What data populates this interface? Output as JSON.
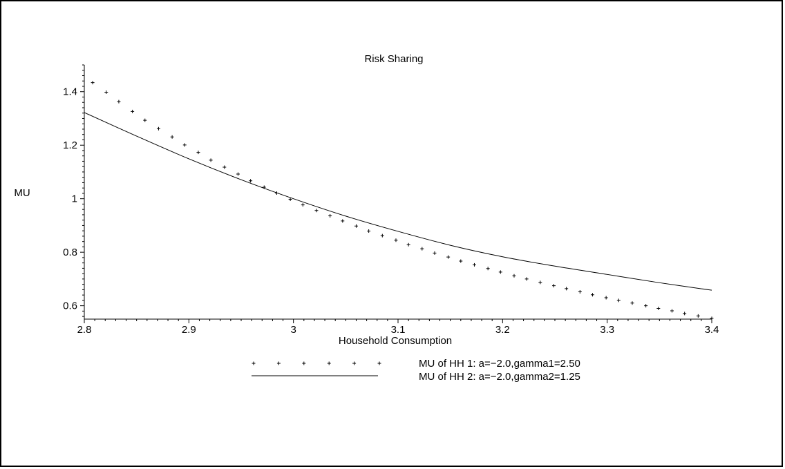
{
  "chart_data": {
    "type": "line",
    "title": "Risk Sharing",
    "xlabel": "Household Consumption",
    "ylabel": "MU",
    "xlim": [
      2.8,
      3.4
    ],
    "ylim": [
      0.55,
      1.5
    ],
    "x_ticks": [
      "2.8",
      "2.9",
      "3",
      "3.1",
      "3.2",
      "3.3",
      "3.4"
    ],
    "y_ticks": [
      "0.6",
      "0.8",
      "1",
      "1.2",
      "1.4"
    ],
    "grid": false,
    "legend_position": "bottom-center",
    "series": [
      {
        "name": "MU of HH 1: a=−2.0,gamma1=2.50",
        "style": "points",
        "marker": "+",
        "color": "#000000",
        "x": [
          2.808,
          2.821,
          2.833,
          2.846,
          2.858,
          2.871,
          2.884,
          2.896,
          2.909,
          2.921,
          2.934,
          2.947,
          2.959,
          2.972,
          2.984,
          2.997,
          3.009,
          3.022,
          3.035,
          3.047,
          3.06,
          3.072,
          3.085,
          3.098,
          3.11,
          3.123,
          3.135,
          3.148,
          3.16,
          3.173,
          3.186,
          3.198,
          3.211,
          3.223,
          3.236,
          3.249,
          3.261,
          3.274,
          3.286,
          3.299,
          3.311,
          3.324,
          3.337,
          3.349,
          3.362,
          3.374,
          3.387,
          3.4
        ],
        "y": [
          1.434,
          1.398,
          1.363,
          1.326,
          1.293,
          1.262,
          1.231,
          1.201,
          1.173,
          1.144,
          1.118,
          1.092,
          1.067,
          1.043,
          1.021,
          0.998,
          0.977,
          0.956,
          0.936,
          0.917,
          0.898,
          0.879,
          0.862,
          0.845,
          0.828,
          0.813,
          0.797,
          0.782,
          0.767,
          0.753,
          0.739,
          0.726,
          0.712,
          0.7,
          0.687,
          0.675,
          0.664,
          0.652,
          0.641,
          0.63,
          0.62,
          0.61,
          0.6,
          0.59,
          0.581,
          0.571,
          0.562,
          0.553
        ]
      },
      {
        "name": "MU of HH 2: a=−2.0,gamma2=1.25",
        "style": "line",
        "color": "#000000",
        "x": [
          2.8,
          2.85,
          2.9,
          2.95,
          3.0,
          3.05,
          3.1,
          3.15,
          3.2,
          3.25,
          3.3,
          3.35,
          3.4
        ],
        "y": [
          1.322,
          1.234,
          1.149,
          1.071,
          1.0,
          0.935,
          0.878,
          0.826,
          0.783,
          0.748,
          0.717,
          0.686,
          0.658
        ]
      }
    ]
  }
}
